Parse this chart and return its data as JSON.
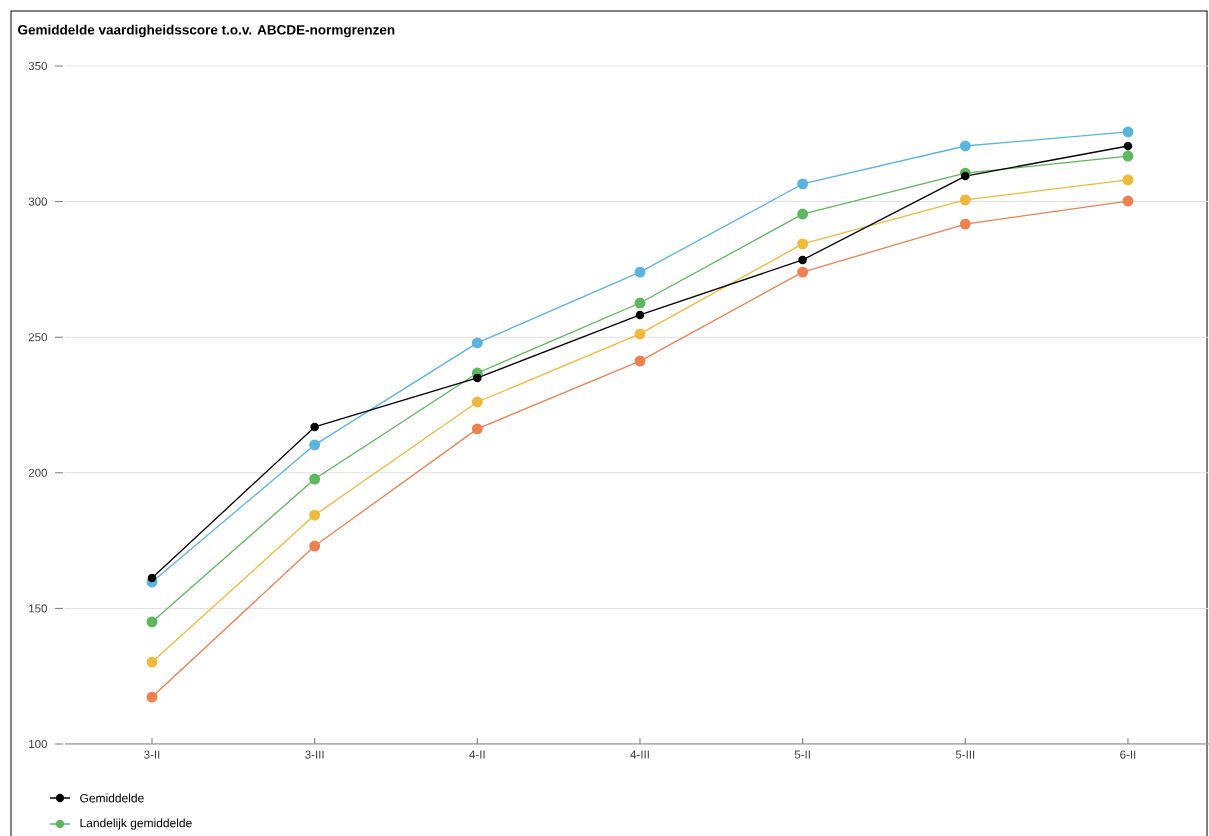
{
  "chart_data": {
    "type": "line",
    "title": "Gemiddelde vaardigheidsscore t.o.v. ABCDE-normgrenzen",
    "categories": [
      "3-II",
      "3-III",
      "4-II",
      "4-III",
      "5-II",
      "5-III",
      "6-II"
    ],
    "series": [
      {
        "color": "#5ab4e0",
        "values": [
          159.7,
          210.3,
          247.9,
          274,
          306.5,
          320.5,
          325.7
        ]
      },
      {
        "name": "Landelijk gemiddelde",
        "color": "#5cb85c",
        "values": [
          145,
          197.7,
          236.8,
          262.6,
          295.4,
          310.5,
          316.8
        ]
      },
      {
        "color": "#f0b93a",
        "values": [
          130.2,
          184.4,
          226.1,
          251.2,
          284.4,
          300.6,
          308
        ]
      },
      {
        "color": "#ee8150",
        "values": [
          117.3,
          173,
          216.2,
          241.2,
          274,
          291.7,
          300.2
        ]
      },
      {
        "name": "Gemiddelde",
        "color": "#000000",
        "values": [
          161.2,
          216.9,
          235,
          258.2,
          278.5,
          309.4,
          320.5
        ]
      }
    ],
    "ylim": [
      100,
      350
    ],
    "yticks": [
      100,
      150,
      200,
      250,
      300,
      350
    ],
    "grid": "y",
    "legend": "bottom left",
    "marker": "circle",
    "line_style": "solid"
  }
}
